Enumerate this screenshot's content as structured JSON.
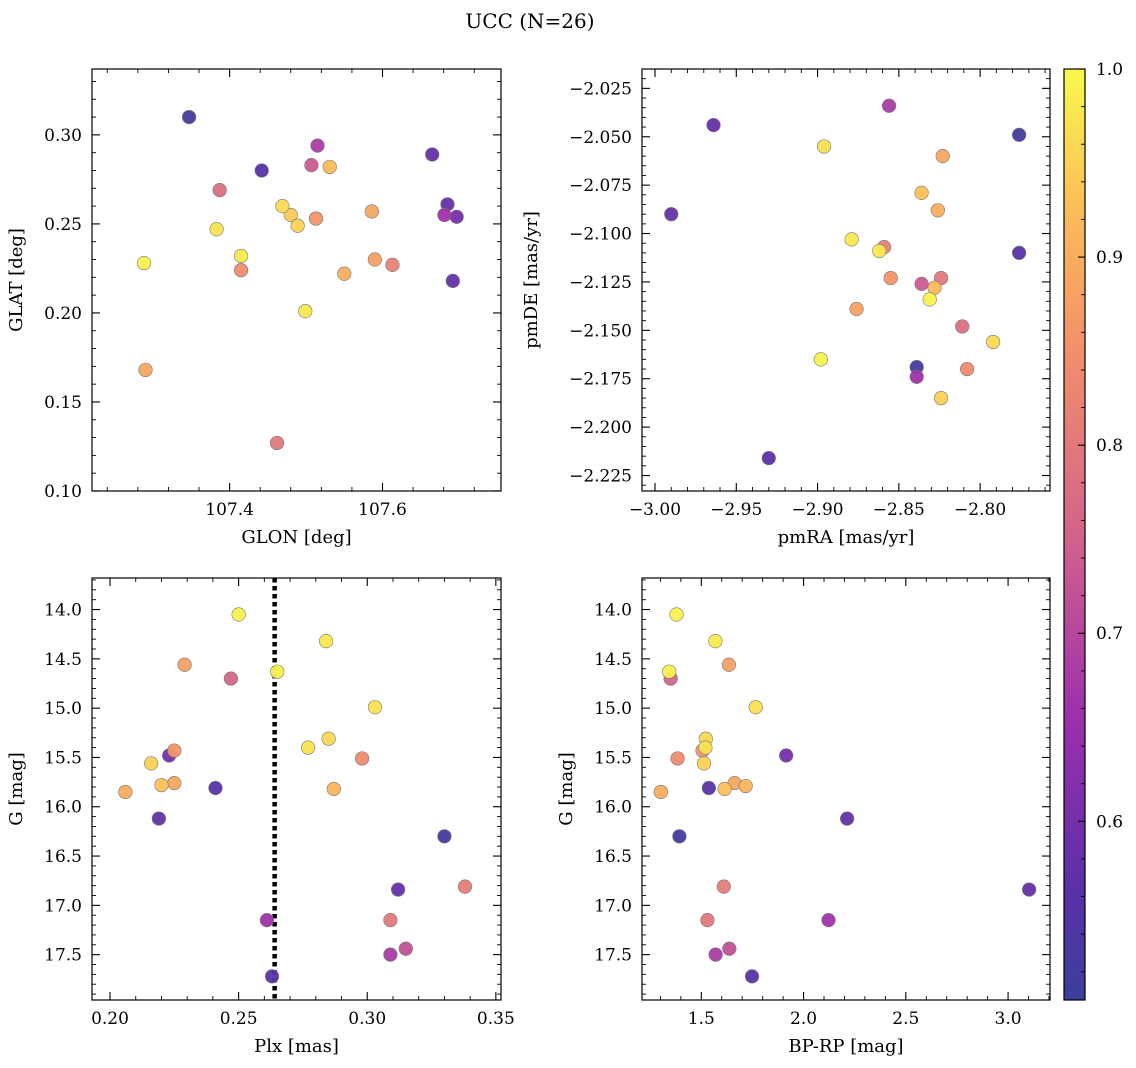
{
  "figure": {
    "title": "UCC (N=26)"
  },
  "colorbar": {
    "vmin": 0.505,
    "vmax": 1.0,
    "ticks": [
      0.6,
      0.7,
      0.8,
      0.9,
      1.0
    ],
    "tick_labels": [
      "0.6",
      "0.7",
      "0.8",
      "0.9",
      "1.0"
    ],
    "colormap": "plasma"
  },
  "chart_data": [
    {
      "type": "scatter",
      "xlabel": "GLON [deg]",
      "ylabel": "GLAT [deg]",
      "xlim": [
        107.22,
        107.755
      ],
      "ylim": [
        0.1,
        0.337
      ],
      "xticks": [
        107.4,
        107.6
      ],
      "xtick_labels": [
        "107.4",
        "107.6"
      ],
      "yticks": [
        0.1,
        0.15,
        0.2,
        0.25,
        0.3
      ],
      "ytick_labels": [
        "0.10",
        "0.15",
        "0.20",
        "0.25",
        "0.30"
      ],
      "y_inverted": false,
      "points": [
        {
          "x": 107.347,
          "y": 0.31,
          "c": 0.52
        },
        {
          "x": 107.442,
          "y": 0.28,
          "c": 0.56
        },
        {
          "x": 107.665,
          "y": 0.289,
          "c": 0.58
        },
        {
          "x": 107.685,
          "y": 0.261,
          "c": 0.58
        },
        {
          "x": 107.697,
          "y": 0.254,
          "c": 0.6
        },
        {
          "x": 107.692,
          "y": 0.218,
          "c": 0.58
        },
        {
          "x": 107.681,
          "y": 0.255,
          "c": 0.66
        },
        {
          "x": 107.515,
          "y": 0.294,
          "c": 0.68
        },
        {
          "x": 107.507,
          "y": 0.283,
          "c": 0.74
        },
        {
          "x": 107.387,
          "y": 0.269,
          "c": 0.78
        },
        {
          "x": 107.462,
          "y": 0.127,
          "c": 0.8
        },
        {
          "x": 107.613,
          "y": 0.227,
          "c": 0.82
        },
        {
          "x": 107.415,
          "y": 0.224,
          "c": 0.84
        },
        {
          "x": 107.513,
          "y": 0.253,
          "c": 0.86
        },
        {
          "x": 107.59,
          "y": 0.23,
          "c": 0.88
        },
        {
          "x": 107.586,
          "y": 0.257,
          "c": 0.89
        },
        {
          "x": 107.29,
          "y": 0.168,
          "c": 0.89
        },
        {
          "x": 107.55,
          "y": 0.222,
          "c": 0.9
        },
        {
          "x": 107.531,
          "y": 0.282,
          "c": 0.92
        },
        {
          "x": 107.48,
          "y": 0.255,
          "c": 0.94
        },
        {
          "x": 107.489,
          "y": 0.249,
          "c": 0.95
        },
        {
          "x": 107.469,
          "y": 0.26,
          "c": 0.96
        },
        {
          "x": 107.383,
          "y": 0.247,
          "c": 0.97
        },
        {
          "x": 107.415,
          "y": 0.232,
          "c": 0.98
        },
        {
          "x": 107.499,
          "y": 0.201,
          "c": 0.98
        },
        {
          "x": 107.288,
          "y": 0.228,
          "c": 0.99
        }
      ]
    },
    {
      "type": "scatter",
      "xlabel": "pmRA [mas/yr]",
      "ylabel": "pmDE [mas/yr]",
      "xlim": [
        -3.008,
        -2.757
      ],
      "ylim": [
        -2.233,
        -2.015
      ],
      "xticks": [
        -3.0,
        -2.95,
        -2.9,
        -2.85,
        -2.8
      ],
      "xtick_labels": [
        "−3.00",
        "−2.95",
        "−2.90",
        "−2.85",
        "−2.80"
      ],
      "yticks": [
        -2.225,
        -2.2,
        -2.175,
        -2.15,
        -2.125,
        -2.1,
        -2.075,
        -2.05,
        -2.025
      ],
      "ytick_labels": [
        "−2.225",
        "−2.200",
        "−2.175",
        "−2.150",
        "−2.125",
        "−2.100",
        "−2.075",
        "−2.050",
        "−2.025"
      ],
      "y_inverted": false,
      "points": [
        {
          "x": -2.964,
          "y": -2.044,
          "c": 0.58
        },
        {
          "x": -2.99,
          "y": -2.09,
          "c": 0.58
        },
        {
          "x": -2.776,
          "y": -2.049,
          "c": 0.52
        },
        {
          "x": -2.776,
          "y": -2.11,
          "c": 0.56
        },
        {
          "x": -2.93,
          "y": -2.216,
          "c": 0.56
        },
        {
          "x": -2.839,
          "y": -2.169,
          "c": 0.52
        },
        {
          "x": -2.856,
          "y": -2.034,
          "c": 0.68
        },
        {
          "x": -2.839,
          "y": -2.174,
          "c": 0.66
        },
        {
          "x": -2.836,
          "y": -2.126,
          "c": 0.74
        },
        {
          "x": -2.811,
          "y": -2.148,
          "c": 0.78
        },
        {
          "x": -2.824,
          "y": -2.123,
          "c": 0.8
        },
        {
          "x": -2.859,
          "y": -2.107,
          "c": 0.82
        },
        {
          "x": -2.808,
          "y": -2.17,
          "c": 0.84
        },
        {
          "x": -2.855,
          "y": -2.123,
          "c": 0.86
        },
        {
          "x": -2.876,
          "y": -2.139,
          "c": 0.88
        },
        {
          "x": -2.823,
          "y": -2.06,
          "c": 0.89
        },
        {
          "x": -2.826,
          "y": -2.088,
          "c": 0.9
        },
        {
          "x": -2.828,
          "y": -2.128,
          "c": 0.92
        },
        {
          "x": -2.836,
          "y": -2.079,
          "c": 0.93
        },
        {
          "x": -2.824,
          "y": -2.185,
          "c": 0.95
        },
        {
          "x": -2.792,
          "y": -2.156,
          "c": 0.96
        },
        {
          "x": -2.896,
          "y": -2.055,
          "c": 0.97
        },
        {
          "x": -2.862,
          "y": -2.109,
          "c": 0.98
        },
        {
          "x": -2.879,
          "y": -2.103,
          "c": 0.98
        },
        {
          "x": -2.831,
          "y": -2.134,
          "c": 0.99
        },
        {
          "x": -2.898,
          "y": -2.165,
          "c": 0.99
        }
      ]
    },
    {
      "type": "scatter",
      "xlabel": "Plx [mas]",
      "ylabel": "G [mag]",
      "xlim": [
        0.193,
        0.352
      ],
      "ylim": [
        17.96,
        13.68
      ],
      "xticks": [
        0.2,
        0.25,
        0.3,
        0.35
      ],
      "xtick_labels": [
        "0.20",
        "0.25",
        "0.30",
        "0.35"
      ],
      "yticks": [
        14.0,
        14.5,
        15.0,
        15.5,
        16.0,
        16.5,
        17.0,
        17.5
      ],
      "ytick_labels": [
        "14.0",
        "14.5",
        "15.0",
        "15.5",
        "16.0",
        "16.5",
        "17.0",
        "17.5"
      ],
      "y_inverted": true,
      "vline": 0.264,
      "points": [
        {
          "x": 0.33,
          "y": 16.3,
          "c": 0.52
        },
        {
          "x": 0.241,
          "y": 15.81,
          "c": 0.56
        },
        {
          "x": 0.263,
          "y": 17.72,
          "c": 0.56
        },
        {
          "x": 0.219,
          "y": 16.12,
          "c": 0.58
        },
        {
          "x": 0.312,
          "y": 16.84,
          "c": 0.58
        },
        {
          "x": 0.223,
          "y": 15.48,
          "c": 0.6
        },
        {
          "x": 0.261,
          "y": 17.15,
          "c": 0.66
        },
        {
          "x": 0.309,
          "y": 17.5,
          "c": 0.68
        },
        {
          "x": 0.315,
          "y": 17.44,
          "c": 0.72
        },
        {
          "x": 0.247,
          "y": 14.7,
          "c": 0.76
        },
        {
          "x": 0.309,
          "y": 17.15,
          "c": 0.8
        },
        {
          "x": 0.338,
          "y": 16.81,
          "c": 0.81
        },
        {
          "x": 0.298,
          "y": 15.51,
          "c": 0.84
        },
        {
          "x": 0.225,
          "y": 15.43,
          "c": 0.86
        },
        {
          "x": 0.229,
          "y": 14.56,
          "c": 0.88
        },
        {
          "x": 0.225,
          "y": 15.76,
          "c": 0.89
        },
        {
          "x": 0.206,
          "y": 15.85,
          "c": 0.9
        },
        {
          "x": 0.287,
          "y": 15.82,
          "c": 0.91
        },
        {
          "x": 0.22,
          "y": 15.78,
          "c": 0.93
        },
        {
          "x": 0.216,
          "y": 15.56,
          "c": 0.95
        },
        {
          "x": 0.285,
          "y": 15.31,
          "c": 0.96
        },
        {
          "x": 0.277,
          "y": 15.4,
          "c": 0.97
        },
        {
          "x": 0.303,
          "y": 14.99,
          "c": 0.97
        },
        {
          "x": 0.284,
          "y": 14.32,
          "c": 0.98
        },
        {
          "x": 0.25,
          "y": 14.05,
          "c": 0.99
        },
        {
          "x": 0.265,
          "y": 14.63,
          "c": 0.99
        }
      ]
    },
    {
      "type": "scatter",
      "xlabel": "BP-RP [mag]",
      "ylabel": "G [mag]",
      "xlim": [
        1.21,
        3.205
      ],
      "ylim": [
        17.96,
        13.68
      ],
      "xticks": [
        1.5,
        2.0,
        2.5,
        3.0
      ],
      "xtick_labels": [
        "1.5",
        "2.0",
        "2.5",
        "3.0"
      ],
      "yticks": [
        14.0,
        14.5,
        15.0,
        15.5,
        16.0,
        16.5,
        17.0,
        17.5
      ],
      "ytick_labels": [
        "14.0",
        "14.5",
        "15.0",
        "15.5",
        "16.0",
        "16.5",
        "17.0",
        "17.5"
      ],
      "y_inverted": true,
      "points": [
        {
          "x": 1.393,
          "y": 16.3,
          "c": 0.52
        },
        {
          "x": 1.537,
          "y": 15.81,
          "c": 0.56
        },
        {
          "x": 1.748,
          "y": 17.72,
          "c": 0.56
        },
        {
          "x": 2.213,
          "y": 16.12,
          "c": 0.58
        },
        {
          "x": 3.103,
          "y": 16.84,
          "c": 0.58
        },
        {
          "x": 1.915,
          "y": 15.48,
          "c": 0.6
        },
        {
          "x": 2.122,
          "y": 17.15,
          "c": 0.66
        },
        {
          "x": 1.57,
          "y": 17.5,
          "c": 0.68
        },
        {
          "x": 1.637,
          "y": 17.44,
          "c": 0.72
        },
        {
          "x": 1.35,
          "y": 14.7,
          "c": 0.76
        },
        {
          "x": 1.53,
          "y": 17.15,
          "c": 0.8
        },
        {
          "x": 1.61,
          "y": 16.81,
          "c": 0.81
        },
        {
          "x": 1.384,
          "y": 15.51,
          "c": 0.84
        },
        {
          "x": 1.506,
          "y": 15.43,
          "c": 0.86
        },
        {
          "x": 1.635,
          "y": 14.56,
          "c": 0.88
        },
        {
          "x": 1.663,
          "y": 15.76,
          "c": 0.89
        },
        {
          "x": 1.302,
          "y": 15.85,
          "c": 0.9
        },
        {
          "x": 1.717,
          "y": 15.79,
          "c": 0.91
        },
        {
          "x": 1.614,
          "y": 15.82,
          "c": 0.93
        },
        {
          "x": 1.513,
          "y": 15.56,
          "c": 0.95
        },
        {
          "x": 1.522,
          "y": 15.31,
          "c": 0.96
        },
        {
          "x": 1.52,
          "y": 15.4,
          "c": 0.97
        },
        {
          "x": 1.766,
          "y": 14.99,
          "c": 0.97
        },
        {
          "x": 1.569,
          "y": 14.32,
          "c": 0.98
        },
        {
          "x": 1.379,
          "y": 14.05,
          "c": 0.99
        },
        {
          "x": 1.343,
          "y": 14.63,
          "c": 0.99
        }
      ]
    }
  ]
}
